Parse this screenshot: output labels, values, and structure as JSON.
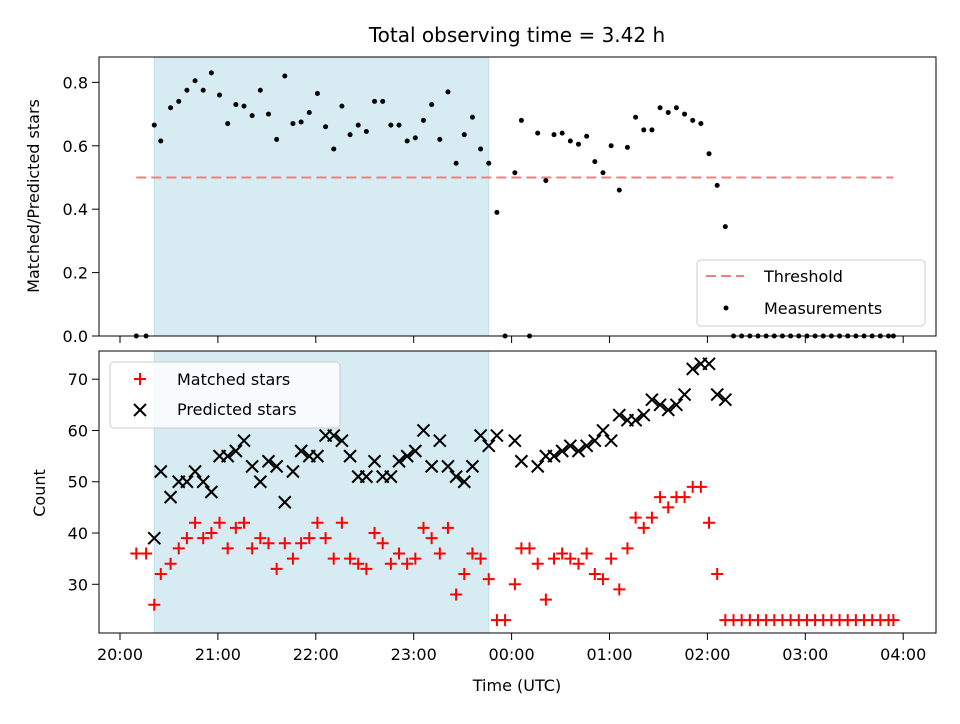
{
  "chart_data": [
    {
      "type": "scatter",
      "title": "Total observing time = 3.42 h",
      "ylabel": "Matched/Predicted stars",
      "ylim": [
        0,
        0.88
      ],
      "yticks": [
        "0.0",
        "0.2",
        "0.4",
        "0.6",
        "0.8"
      ],
      "shaded_span": {
        "x0": "20:21",
        "x1": "23:46",
        "color": "#add8e6"
      },
      "legend": {
        "position": "lower-right",
        "entries": [
          "Threshold",
          "Measurements"
        ]
      },
      "colors": {
        "threshold": "#f08080",
        "measurements": "#000000",
        "shade": "#add8e6"
      },
      "threshold": {
        "name": "Threshold",
        "value": 0.5,
        "x_start": "20:10",
        "x_end": "03:54",
        "style": "dashed"
      },
      "series": [
        {
          "name": "Measurements",
          "marker": "dot",
          "x": [
            "20:10",
            "20:16",
            "20:21",
            "20:25",
            "20:31",
            "20:36",
            "20:41",
            "20:46",
            "20:51",
            "20:56",
            "21:01",
            "21:06",
            "21:11",
            "21:16",
            "21:21",
            "21:26",
            "21:31",
            "21:36",
            "21:41",
            "21:46",
            "21:51",
            "21:56",
            "22:01",
            "22:06",
            "22:11",
            "22:16",
            "22:21",
            "22:26",
            "22:31",
            "22:36",
            "22:41",
            "22:46",
            "22:51",
            "22:56",
            "23:01",
            "23:06",
            "23:11",
            "23:16",
            "23:21",
            "23:26",
            "23:31",
            "23:36",
            "23:41",
            "23:46",
            "23:51",
            "23:56",
            "00:02",
            "00:06",
            "00:11",
            "00:16",
            "00:21",
            "00:26",
            "00:31",
            "00:36",
            "00:41",
            "00:46",
            "00:51",
            "00:56",
            "01:01",
            "01:06",
            "01:11",
            "01:16",
            "01:21",
            "01:26",
            "01:31",
            "01:36",
            "01:41",
            "01:46",
            "01:51",
            "01:56",
            "02:01",
            "02:06",
            "02:11",
            "02:16",
            "02:21",
            "02:26",
            "02:31",
            "02:36",
            "02:41",
            "02:46",
            "02:51",
            "02:56",
            "03:01",
            "03:06",
            "03:11",
            "03:16",
            "03:21",
            "03:26",
            "03:31",
            "03:36",
            "03:41",
            "03:46",
            "03:51",
            "03:54"
          ],
          "y": [
            0.0,
            0.0,
            0.665,
            0.615,
            0.72,
            0.74,
            0.775,
            0.805,
            0.775,
            0.83,
            0.76,
            0.67,
            0.73,
            0.725,
            0.695,
            0.775,
            0.7,
            0.62,
            0.82,
            0.67,
            0.675,
            0.705,
            0.765,
            0.66,
            0.59,
            0.725,
            0.635,
            0.665,
            0.645,
            0.74,
            0.74,
            0.665,
            0.665,
            0.615,
            0.625,
            0.68,
            0.73,
            0.62,
            0.77,
            0.545,
            0.635,
            0.69,
            0.59,
            0.545,
            0.39,
            0.0,
            0.515,
            0.68,
            0.0,
            0.64,
            0.49,
            0.635,
            0.64,
            0.615,
            0.605,
            0.63,
            0.55,
            0.515,
            0.6,
            0.46,
            0.595,
            0.69,
            0.65,
            0.65,
            0.72,
            0.705,
            0.72,
            0.7,
            0.68,
            0.67,
            0.575,
            0.475,
            0.345,
            0.0,
            0.0,
            0.0,
            0.0,
            0.0,
            0.0,
            0.0,
            0.0,
            0.0,
            0.0,
            0.0,
            0.0,
            0.0,
            0.0,
            0.0,
            0.0,
            0.0,
            0.0,
            0.0,
            0.0,
            0.0
          ]
        }
      ]
    },
    {
      "type": "scatter",
      "xlabel": "Time (UTC)",
      "ylabel": "Count",
      "ylim": [
        20.5,
        75.5
      ],
      "yticks": [
        "30",
        "40",
        "50",
        "60",
        "70"
      ],
      "xticks": [
        "20:00",
        "21:00",
        "22:00",
        "23:00",
        "00:00",
        "01:00",
        "02:00",
        "03:00",
        "04:00"
      ],
      "legend": {
        "position": "upper-left",
        "entries": [
          "Matched stars",
          "Predicted stars"
        ]
      },
      "colors": {
        "matched": "#ff0000",
        "predicted": "#000000"
      },
      "series": [
        {
          "name": "Matched stars",
          "marker": "plus",
          "x": [
            "20:10",
            "20:16",
            "20:21",
            "20:25",
            "20:31",
            "20:36",
            "20:41",
            "20:46",
            "20:51",
            "20:56",
            "21:01",
            "21:06",
            "21:11",
            "21:16",
            "21:21",
            "21:26",
            "21:31",
            "21:36",
            "21:41",
            "21:46",
            "21:51",
            "21:56",
            "22:01",
            "22:06",
            "22:11",
            "22:16",
            "22:21",
            "22:26",
            "22:31",
            "22:36",
            "22:41",
            "22:46",
            "22:51",
            "22:56",
            "23:01",
            "23:06",
            "23:11",
            "23:16",
            "23:21",
            "23:26",
            "23:31",
            "23:36",
            "23:41",
            "23:46",
            "23:51",
            "23:56",
            "00:02",
            "00:06",
            "00:11",
            "00:16",
            "00:21",
            "00:26",
            "00:31",
            "00:36",
            "00:41",
            "00:46",
            "00:51",
            "00:56",
            "01:01",
            "01:06",
            "01:11",
            "01:16",
            "01:21",
            "01:26",
            "01:31",
            "01:36",
            "01:41",
            "01:46",
            "01:51",
            "01:56",
            "02:01",
            "02:06",
            "02:11",
            "02:16",
            "02:21",
            "02:26",
            "02:31",
            "02:36",
            "02:41",
            "02:46",
            "02:51",
            "02:56",
            "03:01",
            "03:06",
            "03:11",
            "03:16",
            "03:21",
            "03:26",
            "03:31",
            "03:36",
            "03:41",
            "03:46",
            "03:51",
            "03:54"
          ],
          "y": [
            36,
            36,
            26,
            32,
            34,
            37,
            39,
            42,
            39,
            40,
            42,
            37,
            41,
            42,
            37,
            39,
            38,
            33,
            38,
            35,
            38,
            39,
            42,
            39,
            35,
            42,
            35,
            34,
            33,
            40,
            38,
            34,
            36,
            34,
            35,
            41,
            39,
            36,
            41,
            28,
            32,
            36,
            35,
            31,
            23,
            23,
            30,
            37,
            37,
            34,
            27,
            35,
            36,
            35,
            34,
            36,
            32,
            31,
            35,
            29,
            37,
            43,
            41,
            43,
            47,
            45,
            47,
            47,
            49,
            49,
            42,
            32,
            23,
            23,
            23,
            23,
            23,
            23,
            23,
            23,
            23,
            23,
            23,
            23,
            23,
            23,
            23,
            23,
            23,
            23,
            23,
            23,
            23,
            23
          ]
        },
        {
          "name": "Predicted stars",
          "marker": "x",
          "x": [
            "20:21",
            "20:25",
            "20:31",
            "20:36",
            "20:41",
            "20:46",
            "20:51",
            "20:56",
            "21:01",
            "21:06",
            "21:11",
            "21:16",
            "21:21",
            "21:26",
            "21:31",
            "21:36",
            "21:41",
            "21:46",
            "21:51",
            "21:56",
            "22:01",
            "22:06",
            "22:11",
            "22:16",
            "22:21",
            "22:26",
            "22:31",
            "22:36",
            "22:41",
            "22:46",
            "22:51",
            "22:56",
            "23:01",
            "23:06",
            "23:11",
            "23:16",
            "23:21",
            "23:26",
            "23:31",
            "23:36",
            "23:41",
            "23:46",
            "23:51",
            "00:02",
            "00:06",
            "00:16",
            "00:21",
            "00:26",
            "00:31",
            "00:36",
            "00:41",
            "00:46",
            "00:51",
            "00:56",
            "01:01",
            "01:06",
            "01:11",
            "01:16",
            "01:21",
            "01:26",
            "01:31",
            "01:36",
            "01:41",
            "01:46",
            "01:51",
            "01:56",
            "02:01",
            "02:06",
            "02:11"
          ],
          "y": [
            39,
            52,
            47,
            50,
            50,
            52,
            50,
            48,
            55,
            55,
            56,
            58,
            53,
            50,
            54,
            53,
            46,
            52,
            56,
            55,
            55,
            59,
            59,
            58,
            55,
            51,
            51,
            54,
            51,
            51,
            54,
            55,
            56,
            60,
            53,
            58,
            53,
            51,
            50,
            53,
            59,
            57,
            59,
            58,
            54,
            53,
            55,
            55,
            56,
            57,
            56,
            57,
            58,
            60,
            58,
            63,
            62,
            62,
            63,
            66,
            65,
            64,
            65,
            67,
            72,
            73,
            73,
            67,
            66
          ]
        }
      ]
    }
  ]
}
